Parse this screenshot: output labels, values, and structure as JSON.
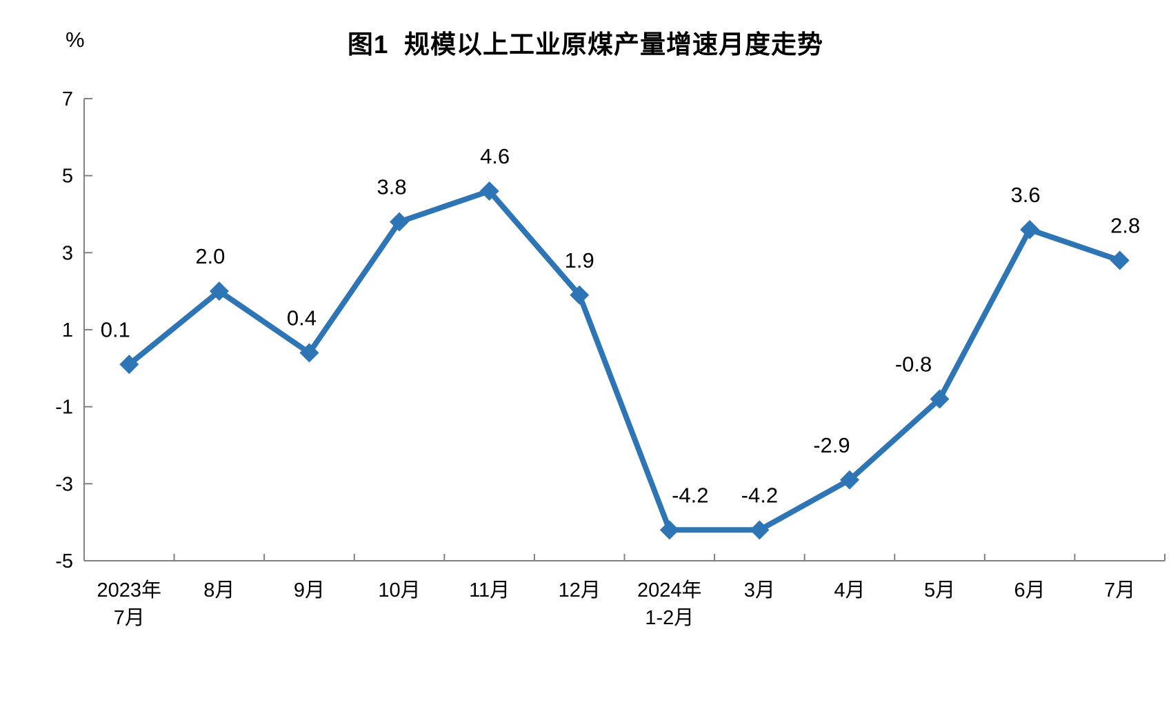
{
  "chart_data": {
    "type": "line",
    "title": "图1  规模以上工业原煤产量增速月度走势",
    "ylabel": "%",
    "xlabel": "",
    "ylim": [
      -5,
      7
    ],
    "yticks": [
      7,
      5,
      3,
      1,
      -1,
      -3,
      -5
    ],
    "categories": [
      [
        "2023年",
        "7月"
      ],
      [
        "8月"
      ],
      [
        "9月"
      ],
      [
        "10月"
      ],
      [
        "11月"
      ],
      [
        "12月"
      ],
      [
        "2024年",
        "1-2月"
      ],
      [
        "3月"
      ],
      [
        "4月"
      ],
      [
        "5月"
      ],
      [
        "6月"
      ],
      [
        "7月"
      ]
    ],
    "series": [
      {
        "name": "规模以上工业原煤产量增速",
        "values": [
          0.1,
          2.0,
          0.4,
          3.8,
          4.6,
          1.9,
          -4.2,
          -4.2,
          -2.9,
          -0.8,
          3.6,
          2.8
        ],
        "data_labels": [
          "0.1",
          "2.0",
          "0.4",
          "3.8",
          "4.6",
          "1.9",
          "-4.2",
          "-4.2",
          "-2.9",
          "-0.8",
          "3.6",
          "2.8"
        ]
      }
    ],
    "marker": "diamond",
    "grid": "off",
    "legend": "none",
    "line_color": "#2E75B6",
    "axis_color": "#808080",
    "text_color": "#000000"
  }
}
